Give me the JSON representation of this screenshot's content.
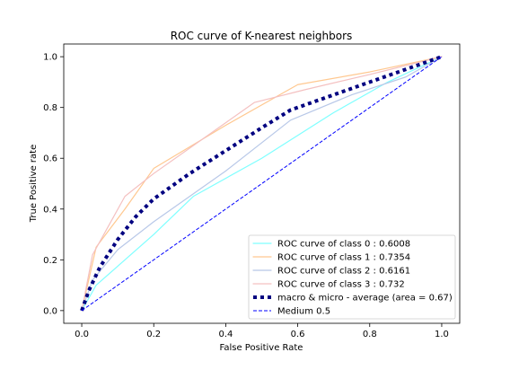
{
  "chart_data": {
    "type": "line",
    "title": "ROC curve of K-nearest neighbors",
    "xlabel": "False Positive Rate",
    "ylabel": "True Positive rate",
    "xlim": [
      -0.05,
      1.05
    ],
    "ylim": [
      -0.05,
      1.05
    ],
    "xticks": [
      0.0,
      0.2,
      0.4,
      0.6,
      0.8,
      1.0
    ],
    "yticks": [
      0.0,
      0.2,
      0.4,
      0.6,
      0.8,
      1.0
    ],
    "xtick_labels": [
      "0.0",
      "0.2",
      "0.4",
      "0.6",
      "0.8",
      "1.0"
    ],
    "ytick_labels": [
      "0.0",
      "0.2",
      "0.4",
      "0.6",
      "0.8",
      "1.0"
    ],
    "grid": false,
    "legend_position": "lower-right",
    "series": [
      {
        "name": "ROC curve of class 0 : 0.6008",
        "color": "#7fffff",
        "style": "solid",
        "x": [
          0.0,
          0.04,
          0.12,
          0.2,
          0.31,
          0.5,
          0.7,
          0.85,
          1.0
        ],
        "y": [
          0.0,
          0.1,
          0.2,
          0.3,
          0.45,
          0.6,
          0.78,
          0.9,
          1.0
        ]
      },
      {
        "name": "ROC curve of class 1 : 0.7354",
        "color": "#ffc890",
        "style": "solid",
        "x": [
          0.0,
          0.04,
          0.12,
          0.2,
          0.4,
          0.6,
          0.8,
          1.0
        ],
        "y": [
          0.0,
          0.25,
          0.4,
          0.56,
          0.73,
          0.89,
          0.94,
          1.0
        ]
      },
      {
        "name": "ROC curve of class 2 : 0.6161",
        "color": "#b8c8e8",
        "style": "solid",
        "x": [
          0.0,
          0.03,
          0.1,
          0.2,
          0.4,
          0.58,
          0.75,
          0.9,
          1.0
        ],
        "y": [
          0.0,
          0.12,
          0.24,
          0.35,
          0.55,
          0.75,
          0.85,
          0.92,
          1.0
        ]
      },
      {
        "name": "ROC curve of class 3 : 0.732",
        "color": "#f4c0c0",
        "style": "solid",
        "x": [
          0.0,
          0.03,
          0.12,
          0.2,
          0.34,
          0.48,
          0.62,
          0.8,
          1.0
        ],
        "y": [
          0.0,
          0.22,
          0.45,
          0.54,
          0.68,
          0.82,
          0.87,
          0.93,
          1.0
        ]
      },
      {
        "name": "macro & micro - average (area = 0.67)",
        "color": "#000080",
        "style": "dotted",
        "x": [
          0.0,
          0.02,
          0.05,
          0.1,
          0.15,
          0.2,
          0.3,
          0.4,
          0.5,
          0.58,
          0.7,
          0.8,
          0.9,
          1.0
        ],
        "y": [
          0.0,
          0.08,
          0.17,
          0.28,
          0.37,
          0.44,
          0.54,
          0.63,
          0.72,
          0.79,
          0.85,
          0.9,
          0.95,
          1.0
        ]
      },
      {
        "name": "Medium 0.5",
        "color": "#0000ff",
        "style": "dashed",
        "x": [
          0.0,
          1.0
        ],
        "y": [
          0.0,
          1.0
        ]
      }
    ]
  }
}
